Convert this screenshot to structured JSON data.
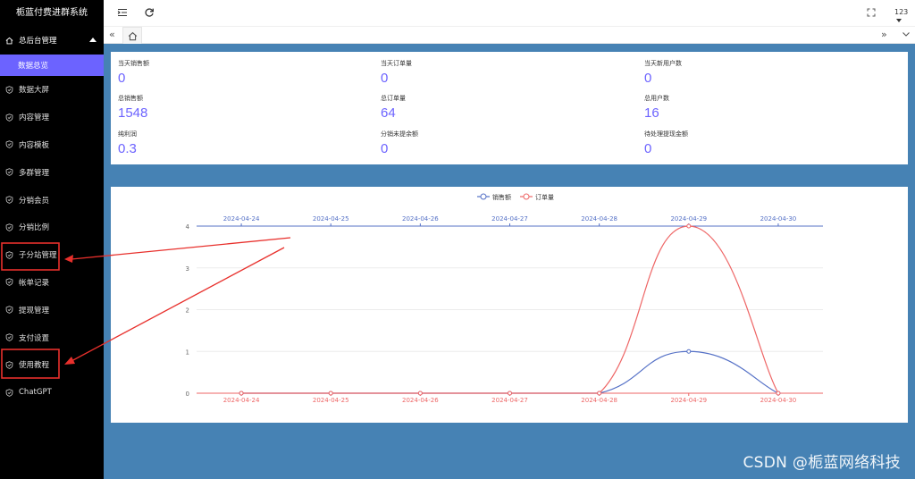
{
  "app": {
    "title": "栀蓝付费进群系统"
  },
  "sidebar": {
    "group_label": "总后台管理",
    "active_item": "数据总览",
    "items": [
      {
        "label": "数据大屏",
        "icon": "shield-check-icon"
      },
      {
        "label": "内容管理",
        "icon": "shield-check-icon"
      },
      {
        "label": "内容模板",
        "icon": "shield-check-icon"
      },
      {
        "label": "多群管理",
        "icon": "shield-check-icon"
      },
      {
        "label": "分销会员",
        "icon": "shield-check-icon"
      },
      {
        "label": "分销比例",
        "icon": "shield-check-icon"
      },
      {
        "label": "子分站管理",
        "icon": "shield-check-icon"
      },
      {
        "label": "帐单记录",
        "icon": "shield-check-icon"
      },
      {
        "label": "提现管理",
        "icon": "shield-check-icon"
      },
      {
        "label": "支付设置",
        "icon": "shield-check-icon"
      },
      {
        "label": "使用教程",
        "icon": "shield-check-icon"
      },
      {
        "label": "ChatGPT",
        "icon": "shield-check-icon"
      }
    ]
  },
  "header": {
    "user": "123",
    "menu_toggle_icon": "indent-icon",
    "refresh_icon": "refresh-icon",
    "fullscreen_icon": "fullscreen-icon"
  },
  "stats": [
    {
      "label": "当天销售额",
      "value": "0"
    },
    {
      "label": "当天订单量",
      "value": "0"
    },
    {
      "label": "当天新用户数",
      "value": "0"
    },
    {
      "label": "总销售额",
      "value": "1548"
    },
    {
      "label": "总订单量",
      "value": "64"
    },
    {
      "label": "总用户数",
      "value": "16"
    },
    {
      "label": "纯利润",
      "value": "0.3"
    },
    {
      "label": "分销未提余额",
      "value": "0"
    },
    {
      "label": "待处理提现金额",
      "value": "0"
    }
  ],
  "chart_data": {
    "type": "line",
    "x": [
      "2024-04-24",
      "2024-04-25",
      "2024-04-26",
      "2024-04-27",
      "2024-04-28",
      "2024-04-29",
      "2024-04-30"
    ],
    "series": [
      {
        "name": "销售额",
        "values": [
          0,
          0,
          0,
          0,
          0,
          1,
          0
        ],
        "color": "#5470c6"
      },
      {
        "name": "订单量",
        "values": [
          0,
          0,
          0,
          0,
          0,
          4,
          0
        ],
        "color": "#ee6666"
      }
    ],
    "ylim": [
      0,
      4
    ],
    "yticks": [
      "0",
      "1",
      "2",
      "3",
      "4"
    ],
    "legend": "top-center",
    "smooth": true
  },
  "colors": {
    "accent": "#6c63ff",
    "main_bg": "#4682b4",
    "sidebar_bg": "#000000",
    "annotation": "#e8302c"
  },
  "watermark": "CSDN @栀蓝网络科技"
}
